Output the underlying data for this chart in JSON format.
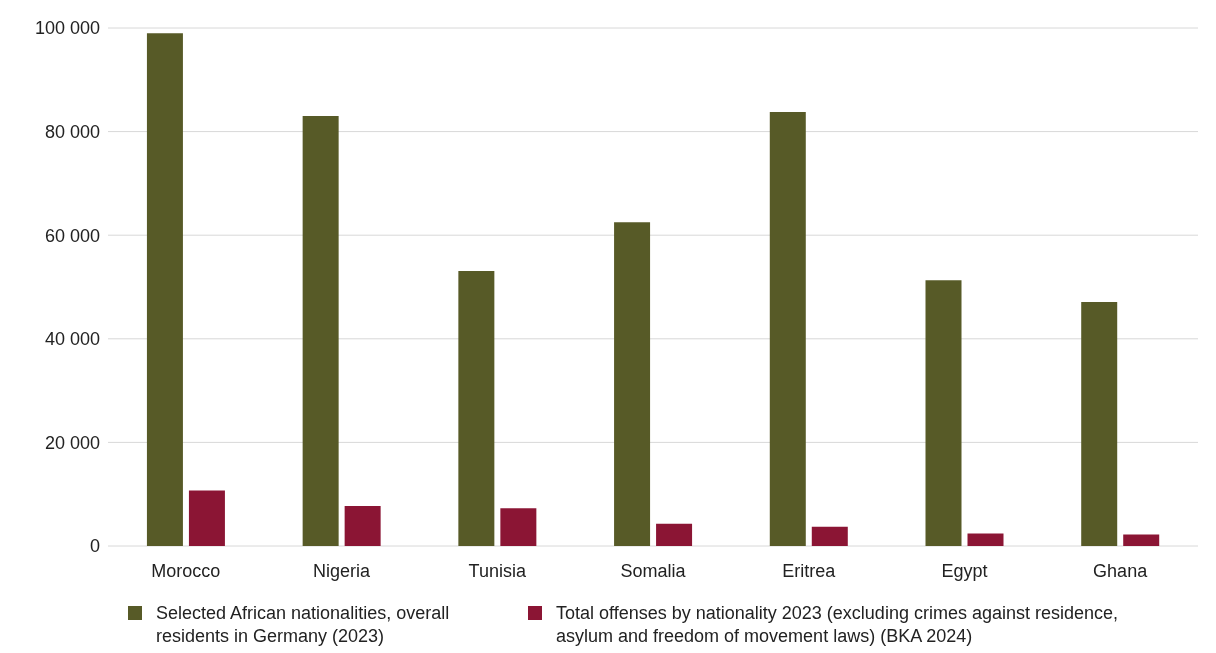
{
  "chart_data": {
    "type": "bar",
    "categories": [
      "Morocco",
      "Nigeria",
      "Tunisia",
      "Somalia",
      "Eritrea",
      "Egypt",
      "Ghana"
    ],
    "series": [
      {
        "name": "Selected African nationalities, overall residents in Germany (2023)",
        "color": "#575a27",
        "values": [
          99000,
          83000,
          53100,
          62500,
          83800,
          51300,
          47100
        ]
      },
      {
        "name": "Total offenses by nationality 2023 (excluding crimes against residence, asylum and freedom of movement laws) (BKA 2024)",
        "color": "#8b1534",
        "values": [
          10700,
          7700,
          7300,
          4300,
          3700,
          2400,
          2200
        ]
      }
    ],
    "ylim": [
      0,
      100000
    ],
    "yticks": [
      {
        "value": 0,
        "label": "0"
      },
      {
        "value": 20000,
        "label": "20 000"
      },
      {
        "value": 40000,
        "label": "40 000"
      },
      {
        "value": 60000,
        "label": "60 000"
      },
      {
        "value": 80000,
        "label": "80 000"
      },
      {
        "value": 100000,
        "label": "100 000"
      }
    ],
    "grid": "y",
    "legend": "bottom"
  }
}
